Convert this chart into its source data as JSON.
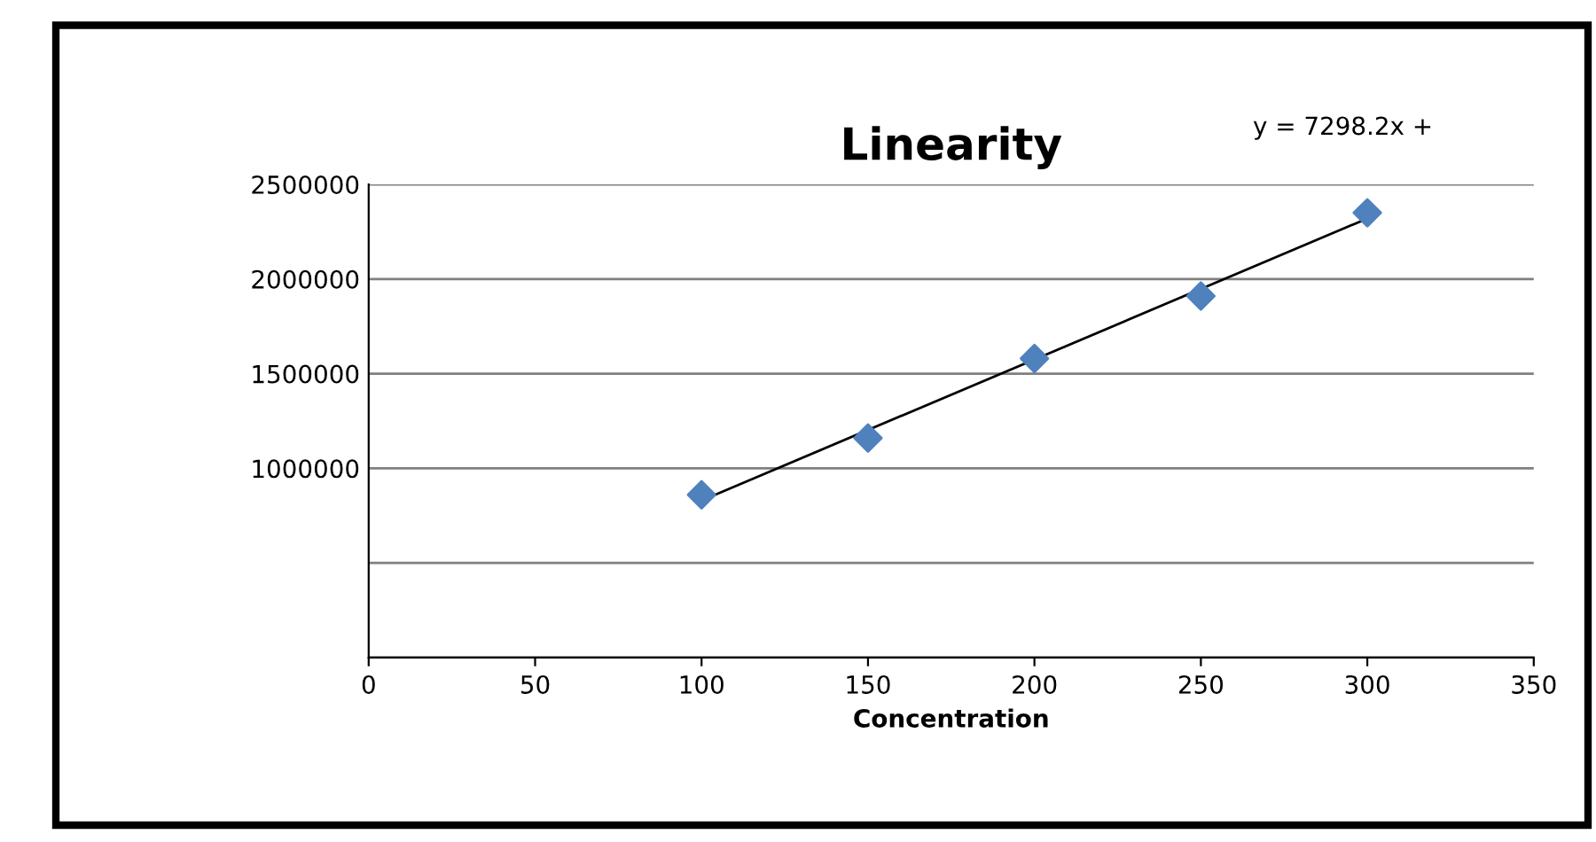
{
  "chart_data": {
    "type": "scatter",
    "title": "Linearity",
    "xlabel": "Concentration",
    "series": [
      {
        "color": "#4f81bd",
        "marker": "diamond",
        "x": [
          100,
          150,
          200,
          250,
          300
        ],
        "values": [
          860000,
          1160000,
          1580000,
          1910000,
          2350000
        ]
      },
      {
        "type": "line",
        "color": "#000000",
        "marker": "none",
        "x": [
          100,
          300
        ],
        "values": [
          830000,
          2320000
        ]
      }
    ],
    "annotations": [
      "y = 7298.2x +"
    ],
    "xlim": [
      0,
      350
    ],
    "xticks": [
      0,
      50,
      100,
      150,
      200,
      250,
      300,
      350
    ],
    "ylim": [
      0,
      2500000
    ],
    "yticks": [
      {
        "value": 0,
        "label": null
      },
      {
        "value": 500000,
        "label": null
      },
      1000000,
      1500000,
      2000000,
      2500000
    ],
    "grid": "y",
    "legend": false
  }
}
